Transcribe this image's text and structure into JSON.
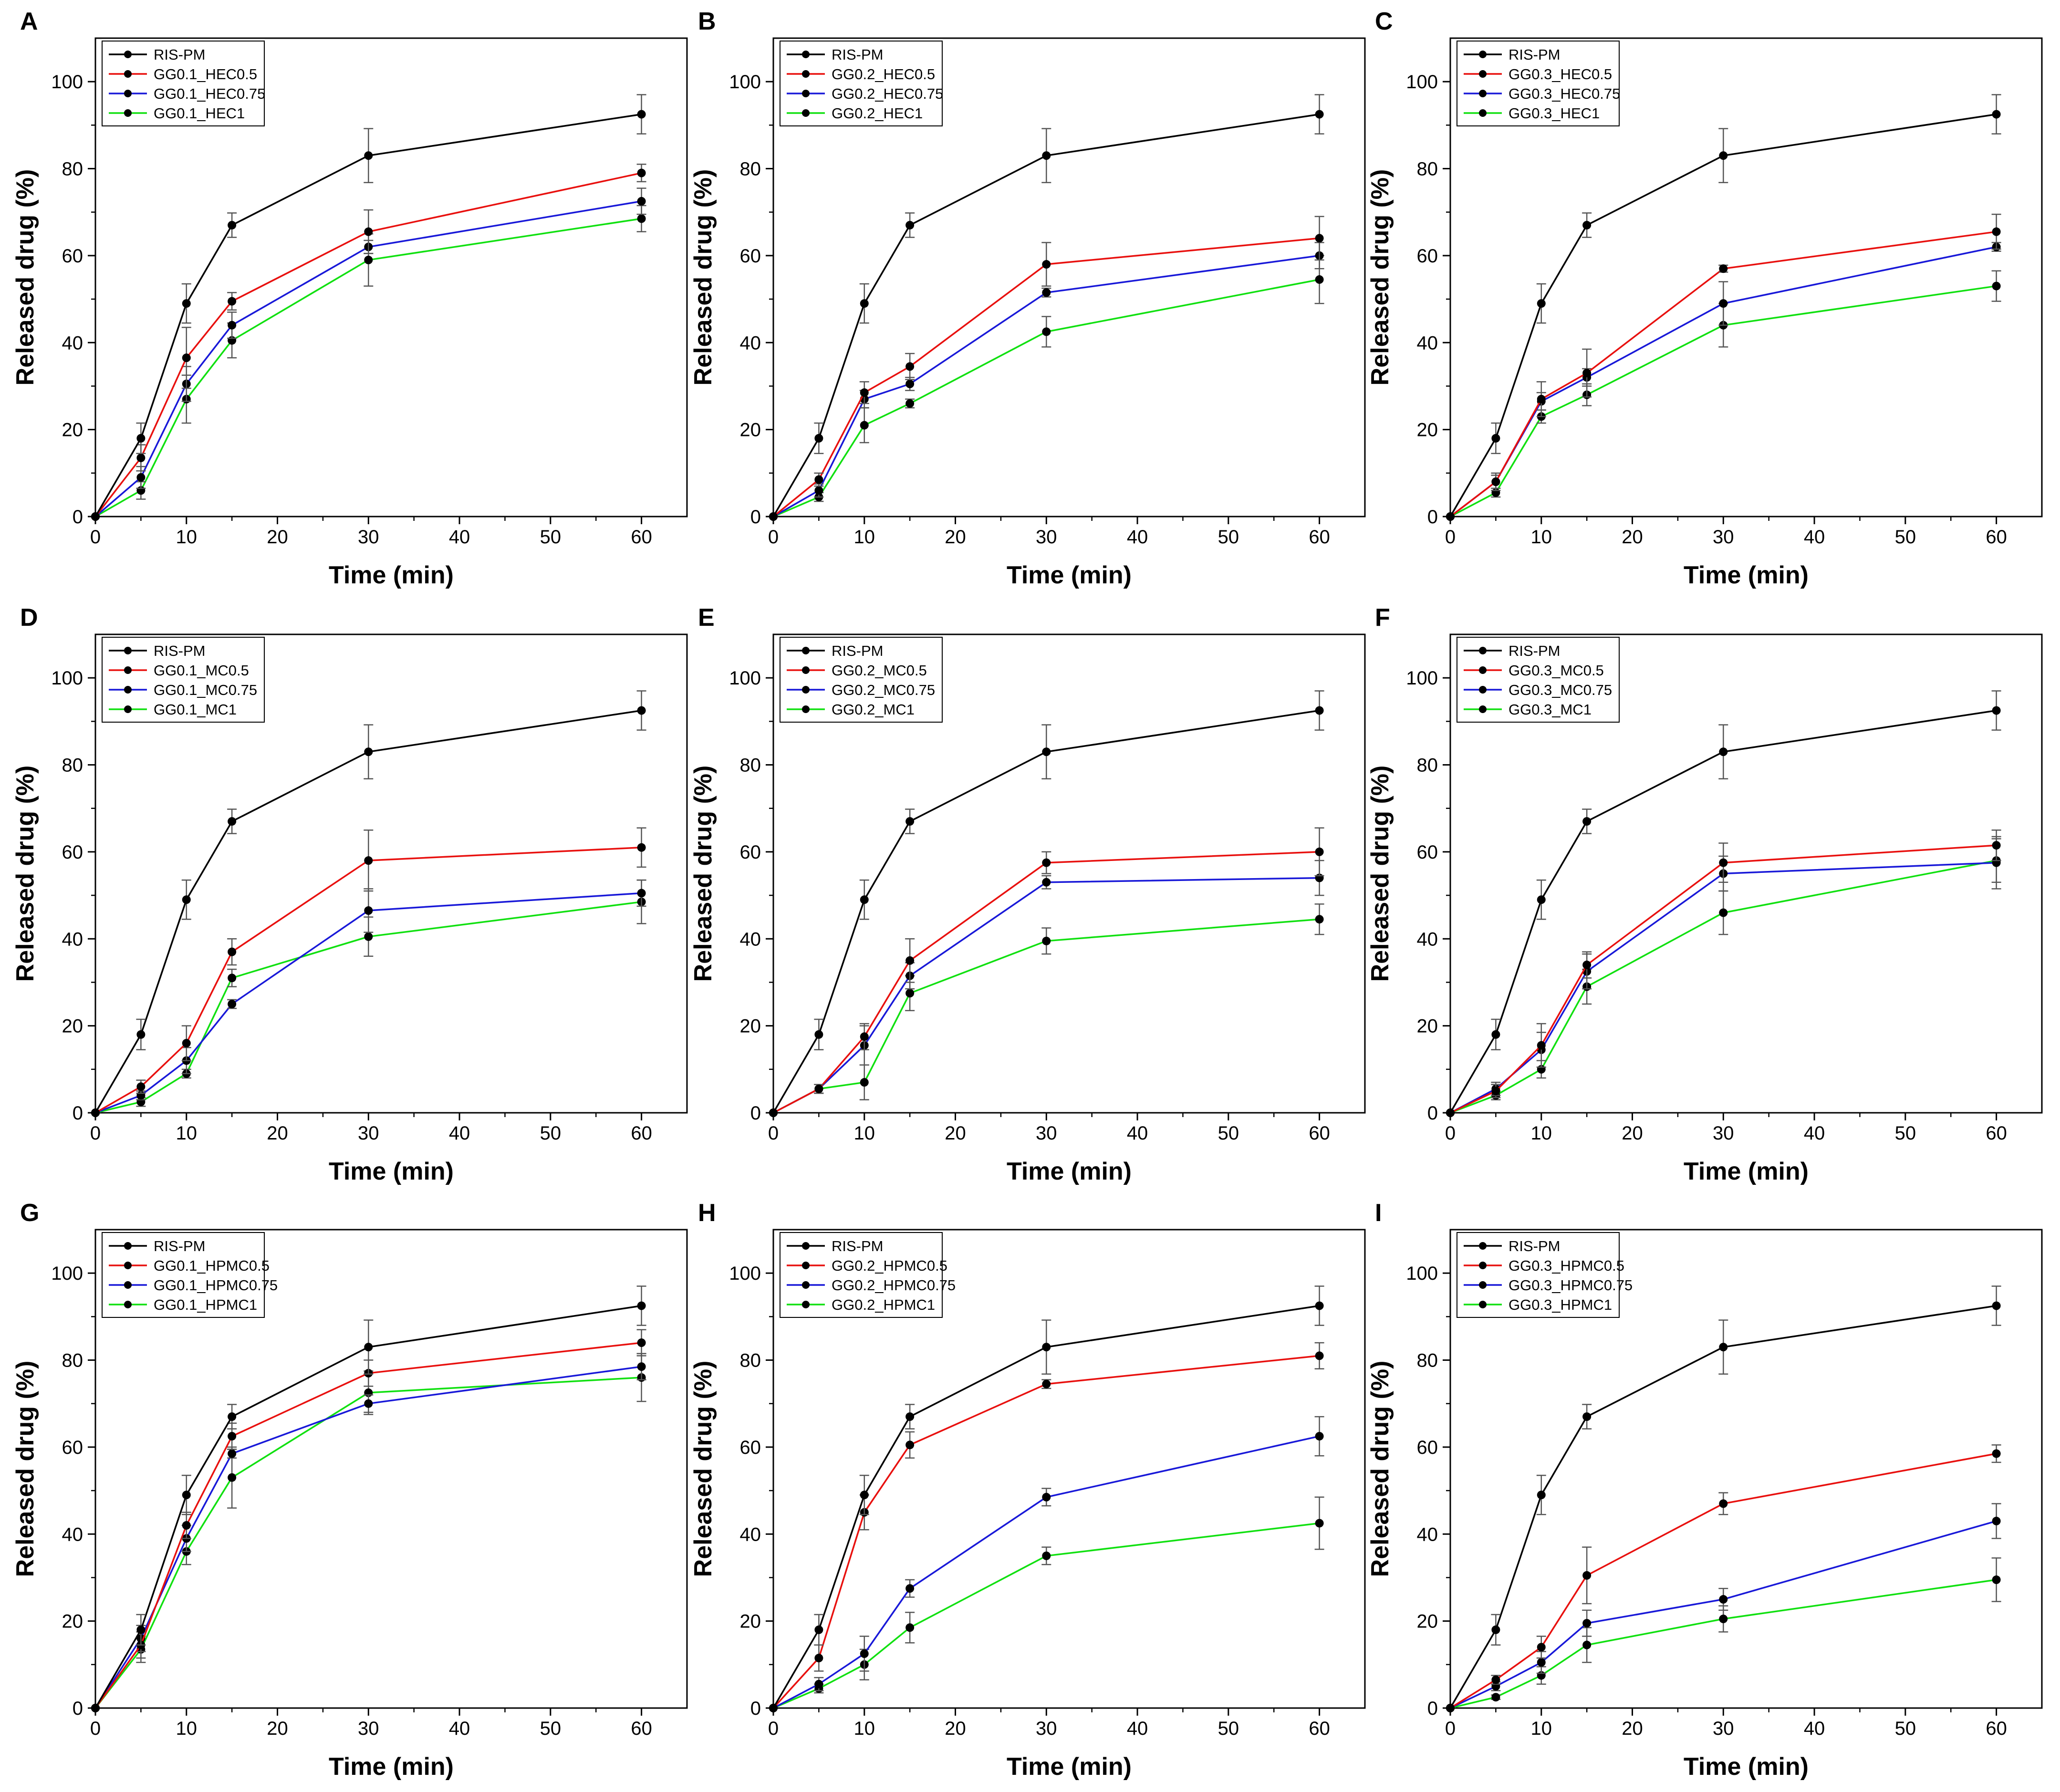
{
  "figure": {
    "description_panels": "3x3 grid of drug release profiles"
  },
  "colors": {
    "RIS-PM": "#000000",
    "0.5": "#e8100e",
    "0.75": "#1818d8",
    "1": "#10e010",
    "marker": "#000000",
    "errorbar": "#555555"
  },
  "chart_data": [
    {
      "panel": "A",
      "type": "line",
      "xlabel": "Time (min)",
      "ylabel": "Released drug (%)",
      "xlim": [
        0,
        65
      ],
      "ylim": [
        0,
        110
      ],
      "xticks": [
        "0",
        "10",
        "20",
        "30",
        "40",
        "50",
        "60"
      ],
      "yticks": [
        "0",
        "20",
        "40",
        "60",
        "80",
        "100"
      ],
      "x": [
        0,
        5,
        10,
        15,
        30,
        60
      ],
      "series": [
        {
          "name": "RIS-PM",
          "color_key": "RIS-PM",
          "values": [
            0,
            18,
            49,
            67,
            83,
            92.5
          ],
          "err": [
            0,
            3.5,
            4.5,
            2.8,
            6.2,
            4.5
          ]
        },
        {
          "name": "GG0.1_HEC0.5",
          "color_key": "0.5",
          "values": [
            0,
            13.5,
            36.5,
            49.5,
            65.5,
            79
          ],
          "err": [
            0,
            3,
            7,
            2,
            5,
            2
          ]
        },
        {
          "name": "GG0.1_HEC0.75",
          "color_key": "0.75",
          "values": [
            0,
            9,
            30.5,
            44,
            62,
            72.5
          ],
          "err": [
            0,
            2.5,
            4,
            3,
            1.5,
            3
          ]
        },
        {
          "name": "GG0.1_HEC1",
          "color_key": "1",
          "values": [
            0,
            6,
            27,
            40.5,
            59,
            68.5
          ],
          "err": [
            0,
            2,
            5.5,
            4,
            6,
            3
          ]
        }
      ]
    },
    {
      "panel": "B",
      "type": "line",
      "xlabel": "Time (min)",
      "ylabel": "Released drug (%)",
      "xlim": [
        0,
        65
      ],
      "ylim": [
        0,
        110
      ],
      "xticks": [
        "0",
        "10",
        "20",
        "30",
        "40",
        "50",
        "60"
      ],
      "yticks": [
        "0",
        "20",
        "40",
        "60",
        "80",
        "100"
      ],
      "x": [
        0,
        5,
        10,
        15,
        30,
        60
      ],
      "series": [
        {
          "name": "RIS-PM",
          "color_key": "RIS-PM",
          "values": [
            0,
            18,
            49,
            67,
            83,
            92.5
          ],
          "err": [
            0,
            3.5,
            4.5,
            2.8,
            6.2,
            4.5
          ]
        },
        {
          "name": "GG0.2_HEC0.5",
          "color_key": "0.5",
          "values": [
            0,
            8.5,
            28.5,
            34.5,
            58,
            64
          ],
          "err": [
            0,
            1.5,
            2.5,
            3,
            5,
            5
          ]
        },
        {
          "name": "GG0.2_HEC0.75",
          "color_key": "0.75",
          "values": [
            0,
            6,
            27,
            30.5,
            51.5,
            60
          ],
          "err": [
            0,
            1.5,
            2,
            1.5,
            1,
            3
          ]
        },
        {
          "name": "GG0.2_HEC1",
          "color_key": "1",
          "values": [
            0,
            4.5,
            21,
            26,
            42.5,
            54.5
          ],
          "err": [
            0,
            1,
            4,
            1,
            3.5,
            5.5
          ]
        }
      ]
    },
    {
      "panel": "C",
      "type": "line",
      "xlabel": "Time (min)",
      "ylabel": "Released drug (%)",
      "xlim": [
        0,
        65
      ],
      "ylim": [
        0,
        110
      ],
      "xticks": [
        "0",
        "10",
        "20",
        "30",
        "40",
        "50",
        "60"
      ],
      "yticks": [
        "0",
        "20",
        "40",
        "60",
        "80",
        "100"
      ],
      "x": [
        0,
        5,
        10,
        15,
        30,
        60
      ],
      "series": [
        {
          "name": "RIS-PM",
          "color_key": "RIS-PM",
          "values": [
            0,
            18,
            49,
            67,
            83,
            92.5
          ],
          "err": [
            0,
            3.5,
            4.5,
            2.8,
            6.2,
            4.5
          ]
        },
        {
          "name": "GG0.3_HEC0.5",
          "color_key": "0.5",
          "values": [
            0,
            8,
            27,
            33,
            57,
            65.5
          ],
          "err": [
            0,
            2,
            4,
            5.5,
            0.8,
            4
          ]
        },
        {
          "name": "GG0.3_HEC0.75",
          "color_key": "0.75",
          "values": [
            0,
            8,
            26.5,
            32,
            49,
            62
          ],
          "err": [
            0,
            1.5,
            2,
            2,
            5,
            1
          ]
        },
        {
          "name": "GG0.3_HEC1",
          "color_key": "1",
          "values": [
            0,
            5.5,
            23,
            28,
            44,
            53
          ],
          "err": [
            0,
            1,
            1.5,
            2.5,
            5,
            3.5
          ]
        }
      ]
    },
    {
      "panel": "D",
      "type": "line",
      "xlabel": "Time (min)",
      "ylabel": "Released drug (%)",
      "xlim": [
        0,
        65
      ],
      "ylim": [
        0,
        110
      ],
      "xticks": [
        "0",
        "10",
        "20",
        "30",
        "40",
        "50",
        "60"
      ],
      "yticks": [
        "0",
        "20",
        "40",
        "60",
        "80",
        "100"
      ],
      "x": [
        0,
        5,
        10,
        15,
        30,
        60
      ],
      "series": [
        {
          "name": "RIS-PM",
          "color_key": "RIS-PM",
          "values": [
            0,
            18,
            49,
            67,
            83,
            92.5
          ],
          "err": [
            0,
            3.5,
            4.5,
            2.8,
            6.2,
            4.5
          ]
        },
        {
          "name": "GG0.1_MC0.5",
          "color_key": "0.5",
          "values": [
            0,
            6,
            16,
            37,
            58,
            61
          ],
          "err": [
            0,
            1.5,
            4,
            3,
            7,
            4.5
          ]
        },
        {
          "name": "GG0.1_MC0.75",
          "color_key": "0.75",
          "values": [
            0,
            4,
            12,
            25,
            46.5,
            50.5
          ],
          "err": [
            0,
            1,
            3,
            1,
            5,
            3
          ]
        },
        {
          "name": "GG0.1_MC1",
          "color_key": "1",
          "values": [
            0,
            2.5,
            9,
            31,
            40.5,
            48.5
          ],
          "err": [
            0,
            1,
            1,
            2,
            4.5,
            5
          ]
        }
      ]
    },
    {
      "panel": "E",
      "type": "line",
      "xlabel": "Time (min)",
      "ylabel": "Released drug (%)",
      "xlim": [
        0,
        65
      ],
      "ylim": [
        0,
        110
      ],
      "xticks": [
        "0",
        "10",
        "20",
        "30",
        "40",
        "50",
        "60"
      ],
      "yticks": [
        "0",
        "20",
        "40",
        "60",
        "80",
        "100"
      ],
      "x": [
        0,
        5,
        10,
        15,
        30,
        60
      ],
      "series": [
        {
          "name": "RIS-PM",
          "color_key": "RIS-PM",
          "values": [
            0,
            18,
            49,
            67,
            83,
            92.5
          ],
          "err": [
            0,
            3.5,
            4.5,
            2.8,
            6.2,
            4.5
          ]
        },
        {
          "name": "GG0.2_MC0.5",
          "color_key": "0.5",
          "values": [
            0,
            5.5,
            17.5,
            35,
            57.5,
            60
          ],
          "err": [
            0,
            1,
            3,
            5,
            2.5,
            5.5
          ]
        },
        {
          "name": "GG0.2_MC0.75",
          "color_key": "0.75",
          "values": [
            0,
            5.5,
            15.5,
            31.5,
            53,
            54
          ],
          "err": [
            0,
            1,
            4.5,
            3,
            1.5,
            4
          ]
        },
        {
          "name": "GG0.2_MC1",
          "color_key": "1",
          "values": [
            0,
            5.5,
            7,
            27.5,
            39.5,
            44.5
          ],
          "err": [
            0,
            1,
            4,
            4,
            3,
            3.5
          ]
        }
      ]
    },
    {
      "panel": "F",
      "type": "line",
      "xlabel": "Time (min)",
      "ylabel": "Released drug (%)",
      "xlim": [
        0,
        65
      ],
      "ylim": [
        0,
        110
      ],
      "xticks": [
        "0",
        "10",
        "20",
        "30",
        "40",
        "50",
        "60"
      ],
      "yticks": [
        "0",
        "20",
        "40",
        "60",
        "80",
        "100"
      ],
      "x": [
        0,
        5,
        10,
        15,
        30,
        60
      ],
      "series": [
        {
          "name": "RIS-PM",
          "color_key": "RIS-PM",
          "values": [
            0,
            18,
            49,
            67,
            83,
            92.5
          ],
          "err": [
            0,
            3.5,
            4.5,
            2.8,
            6.2,
            4.5
          ]
        },
        {
          "name": "GG0.3_MC0.5",
          "color_key": "0.5",
          "values": [
            0,
            5,
            15.5,
            34,
            57.5,
            61.5
          ],
          "err": [
            0,
            1.5,
            5,
            3,
            4.5,
            3.5
          ]
        },
        {
          "name": "GG0.3_MC0.75",
          "color_key": "0.75",
          "values": [
            0,
            5.5,
            14.5,
            32.5,
            55,
            57.5
          ],
          "err": [
            0,
            1.5,
            4,
            4,
            4,
            6
          ]
        },
        {
          "name": "GG0.3_MC1",
          "color_key": "1",
          "values": [
            0,
            4,
            10,
            29,
            46,
            58
          ],
          "err": [
            0,
            1,
            2,
            4,
            5,
            5
          ]
        }
      ]
    },
    {
      "panel": "G",
      "type": "line",
      "xlabel": "Time (min)",
      "ylabel": "Released drug (%)",
      "xlim": [
        0,
        65
      ],
      "ylim": [
        0,
        110
      ],
      "xticks": [
        "0",
        "10",
        "20",
        "30",
        "40",
        "50",
        "60"
      ],
      "yticks": [
        "0",
        "20",
        "40",
        "60",
        "80",
        "100"
      ],
      "x": [
        0,
        5,
        10,
        15,
        30,
        60
      ],
      "series": [
        {
          "name": "RIS-PM",
          "color_key": "RIS-PM",
          "values": [
            0,
            18,
            49,
            67,
            83,
            92.5
          ],
          "err": [
            0,
            3.5,
            4.5,
            2.8,
            6.2,
            4.5
          ]
        },
        {
          "name": "GG0.1_HPMC0.5",
          "color_key": "0.5",
          "values": [
            0,
            14.5,
            42,
            62.5,
            77,
            84
          ],
          "err": [
            0,
            3,
            3,
            3,
            3,
            3
          ]
        },
        {
          "name": "GG0.1_HPMC0.75",
          "color_key": "0.75",
          "values": [
            0,
            16,
            39,
            58.5,
            70,
            78.5
          ],
          "err": [
            0,
            3,
            3,
            1,
            2,
            3
          ]
        },
        {
          "name": "GG0.1_HPMC1",
          "color_key": "1",
          "values": [
            0,
            13.5,
            36,
            53,
            72.5,
            76
          ],
          "err": [
            0,
            3,
            3,
            7,
            5,
            5.5
          ]
        }
      ]
    },
    {
      "panel": "H",
      "type": "line",
      "xlabel": "Time (min)",
      "ylabel": "Released drug (%)",
      "xlim": [
        0,
        65
      ],
      "ylim": [
        0,
        110
      ],
      "xticks": [
        "0",
        "10",
        "20",
        "30",
        "40",
        "50",
        "60"
      ],
      "yticks": [
        "0",
        "20",
        "40",
        "60",
        "80",
        "100"
      ],
      "x": [
        0,
        5,
        10,
        15,
        30,
        60
      ],
      "series": [
        {
          "name": "RIS-PM",
          "color_key": "RIS-PM",
          "values": [
            0,
            18,
            49,
            67,
            83,
            92.5
          ],
          "err": [
            0,
            3.5,
            4.5,
            2.8,
            6.2,
            4.5
          ]
        },
        {
          "name": "GG0.2_HPMC0.5",
          "color_key": "0.5",
          "values": [
            0,
            11.5,
            45,
            60.5,
            74.5,
            81
          ],
          "err": [
            0,
            3,
            4,
            3,
            1,
            3
          ]
        },
        {
          "name": "GG0.2_HPMC0.75",
          "color_key": "0.75",
          "values": [
            0,
            5.5,
            12.5,
            27.5,
            48.5,
            62.5
          ],
          "err": [
            0,
            1.5,
            4,
            2,
            2,
            4.5
          ]
        },
        {
          "name": "GG0.2_HPMC1",
          "color_key": "1",
          "values": [
            0,
            4.5,
            10,
            18.5,
            35,
            42.5
          ],
          "err": [
            0,
            1,
            3.5,
            3.5,
            2,
            6
          ]
        }
      ]
    },
    {
      "panel": "I",
      "type": "line",
      "xlabel": "Time (min)",
      "ylabel": "Released drug (%)",
      "xlim": [
        0,
        65
      ],
      "ylim": [
        0,
        110
      ],
      "xticks": [
        "0",
        "10",
        "20",
        "30",
        "40",
        "50",
        "60"
      ],
      "yticks": [
        "0",
        "20",
        "40",
        "60",
        "80",
        "100"
      ],
      "x": [
        0,
        5,
        10,
        15,
        30,
        60
      ],
      "series": [
        {
          "name": "RIS-PM",
          "color_key": "RIS-PM",
          "values": [
            0,
            18,
            49,
            67,
            83,
            92.5
          ],
          "err": [
            0,
            3.5,
            4.5,
            2.8,
            6.2,
            4.5
          ]
        },
        {
          "name": "GG0.3_HPMC0.5",
          "color_key": "0.5",
          "values": [
            0,
            6.5,
            14,
            30.5,
            47,
            58.5
          ],
          "err": [
            0,
            1,
            2.5,
            6.5,
            2.5,
            2
          ]
        },
        {
          "name": "GG0.3_HPMC0.75",
          "color_key": "0.75",
          "values": [
            0,
            5,
            10.5,
            19.5,
            25,
            43
          ],
          "err": [
            0,
            1,
            2.5,
            3,
            2.5,
            4
          ]
        },
        {
          "name": "GG0.3_HPMC1",
          "color_key": "1",
          "values": [
            0,
            2.5,
            7.5,
            14.5,
            20.5,
            29.5
          ],
          "err": [
            0,
            0.5,
            2,
            4,
            3,
            5
          ]
        }
      ]
    }
  ]
}
